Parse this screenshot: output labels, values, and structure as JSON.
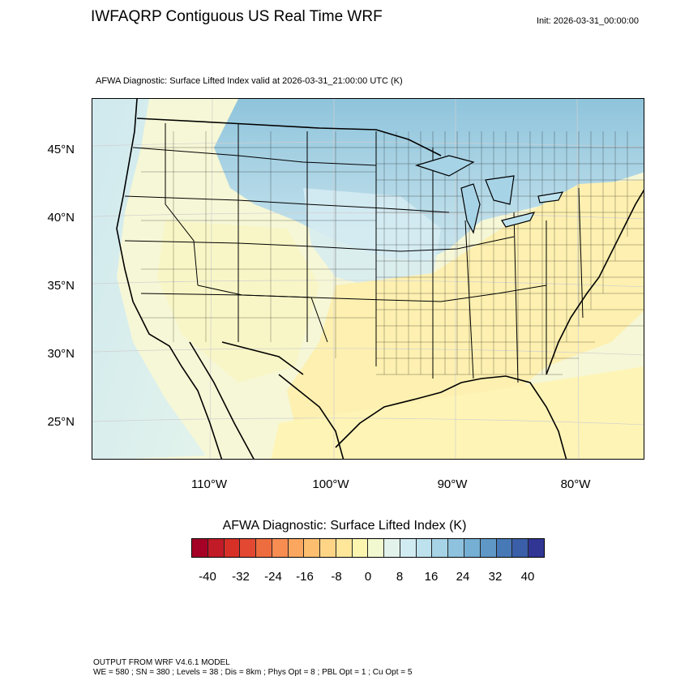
{
  "header": {
    "title": "IWFAQRP Contiguous US Real Time WRF",
    "init": "Init: 2026-03-31_00:00:00",
    "subtitle": "AFWA Diagnostic: Surface Lifted Index valid at 2026-03-31_21:00:00 UTC   (K)"
  },
  "map": {
    "lat_labels": [
      "45°N",
      "40°N",
      "35°N",
      "30°N",
      "25°N"
    ],
    "lon_labels": [
      "110°W",
      "100°W",
      "90°W",
      "80°W"
    ],
    "colors": {
      "ocean_cool": "#cfe9ee",
      "ocean_cold": "#99cde0",
      "warm": "#fdf0b0",
      "neutral": "#f6f7d6",
      "pale_blue": "#d6ecf2",
      "land_line": "#000000"
    }
  },
  "colorbar": {
    "title": "AFWA Diagnostic: Surface Lifted Index  (K)",
    "tick_labels": [
      "-40",
      "-32",
      "-24",
      "-16",
      "-8",
      "0",
      "8",
      "16",
      "24",
      "32",
      "40"
    ],
    "colors": [
      "#a50026",
      "#c01b27",
      "#d73027",
      "#e34932",
      "#ee6d3f",
      "#f88d52",
      "#fba75f",
      "#fdbf6f",
      "#fed586",
      "#fee79a",
      "#fbf5b0",
      "#f2f9d0",
      "#e3f3ec",
      "#d1ebf2",
      "#bde2ee",
      "#a7d3e6",
      "#8ec2de",
      "#75afd3",
      "#5f98c6",
      "#4879b7",
      "#3a5ea8",
      "#313695"
    ]
  },
  "footer": {
    "line1": "OUTPUT FROM WRF V4.6.1 MODEL",
    "line2": "WE = 580 ; SN = 380 ; Levels = 38 ; Dis = 8km ; Phys Opt = 8 ; PBL Opt = 1 ; Cu Opt = 5"
  }
}
